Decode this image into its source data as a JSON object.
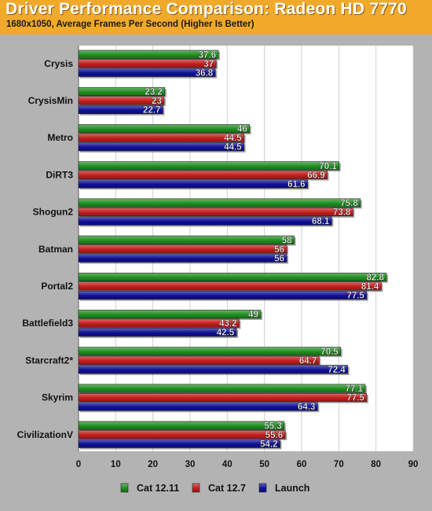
{
  "chart_data": {
    "type": "bar",
    "orientation": "horizontal",
    "title": "Driver Performance Comparison: Radeon HD 7770",
    "subtitle": "1680x1050, Average Frames Per Second (Higher Is Better)",
    "categories": [
      "Crysis",
      "CrysisMin",
      "Metro",
      "DiRT3",
      "Shogun2",
      "Batman",
      "Portal2",
      "Battlefield3",
      "Starcraft2*",
      "Skyrim",
      "CivilizationV"
    ],
    "series": [
      {
        "name": "Cat 12.11",
        "color": "#1f8f1f",
        "values": [
          37.6,
          23.2,
          46,
          70.1,
          75.8,
          58,
          82.8,
          49,
          70.5,
          77.1,
          55.3
        ]
      },
      {
        "name": "Cat 12.7",
        "color": "#c41d1d",
        "values": [
          37,
          23,
          44.5,
          66.9,
          73.8,
          56,
          81.4,
          43.2,
          64.7,
          77.5,
          55.6
        ]
      },
      {
        "name": "Launch",
        "color": "#101096",
        "values": [
          36.8,
          22.7,
          44.5,
          61.6,
          68.1,
          56,
          77.5,
          42.5,
          72.4,
          64.3,
          54.2
        ]
      }
    ],
    "value_labels": [
      [
        "37.6",
        "23.2",
        "46",
        "70.1",
        "75.8",
        "58",
        "82.8",
        "49",
        "70.5",
        "77.1",
        "55.3"
      ],
      [
        "37",
        "23",
        "44.5",
        "66.9",
        "73.8",
        "56",
        "81.4",
        "43.2",
        "64.7",
        "77.5",
        "55.6"
      ],
      [
        "36.8",
        "22.7",
        "44.5",
        "61.6",
        "68.1",
        "56",
        "77.5",
        "42.5",
        "72.4",
        "64.3",
        "54.2"
      ]
    ],
    "xlim": [
      0,
      90
    ],
    "xticks": [
      0,
      10,
      20,
      30,
      40,
      50,
      60,
      70,
      80,
      90
    ],
    "xtick_labels": [
      "0",
      "10",
      "20",
      "30",
      "40",
      "50",
      "60",
      "70",
      "80",
      "90"
    ],
    "grid": true,
    "legend_position": "bottom",
    "colors": {
      "header": "#f0a92a",
      "background": "#b3b3b3",
      "plot_area": "#ffffff",
      "grid": "#d0d0d0"
    }
  }
}
